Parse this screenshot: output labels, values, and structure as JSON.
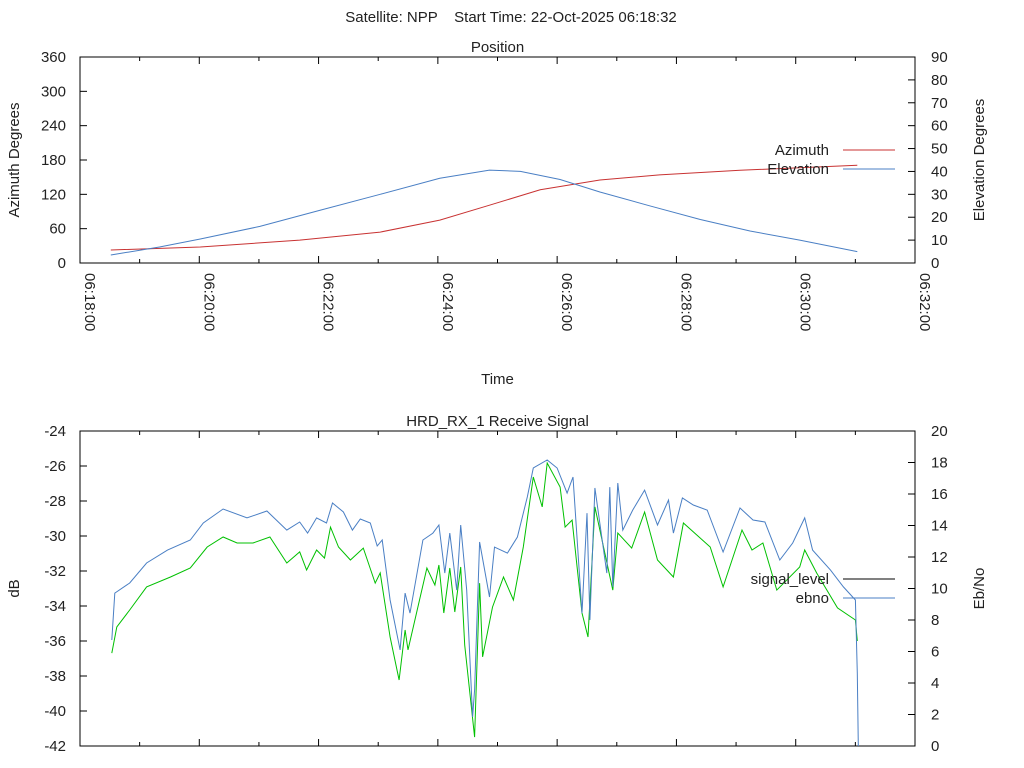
{
  "header": {
    "title": "Satellite: NPP    Start Time: 22-Oct-2025 06:18:32"
  },
  "colors": {
    "azimuth": "#c83232",
    "elevation": "#4a7fc4",
    "signal_level": "#00c000",
    "signal_level_legend": "#000000",
    "ebno": "#4a7fc4"
  },
  "chart_data": [
    {
      "type": "line",
      "title": "Position",
      "xlabel": "Time",
      "ylabel": "Azimuth Degrees",
      "y2label": "Elevation Degrees",
      "x_unit": "seconds since 06:18:00",
      "xlim": [
        0,
        840
      ],
      "ylim": [
        0,
        360
      ],
      "y2lim": [
        0,
        90
      ],
      "xticks": [
        "06:18:00",
        "06:20:00",
        "06:22:00",
        "06:24:00",
        "06:26:00",
        "06:28:00",
        "06:30:00",
        "06:32:00"
      ],
      "yticks": [
        "0",
        "60",
        "120",
        "180",
        "240",
        "300",
        "360"
      ],
      "y2ticks": [
        "0",
        "10",
        "20",
        "30",
        "40",
        "50",
        "60",
        "70",
        "80",
        "90"
      ],
      "legend_position": "right",
      "series": [
        {
          "name": "Azimuth",
          "axis": "y",
          "x": [
            31,
            121,
            221,
            302,
            362,
            412,
            463,
            523,
            583,
            664,
            782
          ],
          "y": [
            22.7,
            28,
            40,
            54,
            75,
            101,
            128,
            145,
            154,
            162,
            171
          ]
        },
        {
          "name": "Elevation",
          "axis": "y2",
          "x": [
            31,
            80,
            121,
            181,
            241,
            302,
            362,
            412,
            443,
            483,
            523,
            573,
            624,
            674,
            724,
            782
          ],
          "y": [
            3.5,
            7,
            10.5,
            16,
            23,
            30,
            37,
            40.6,
            40,
            36.5,
            31,
            25,
            19,
            14,
            10,
            5
          ]
        }
      ]
    },
    {
      "type": "line",
      "title": "HRD_RX_1 Receive Signal",
      "xlabel": "",
      "ylabel": "dB",
      "y2label": "Eb/No",
      "x_unit": "seconds since 06:18:00",
      "xlim": [
        0,
        840
      ],
      "ylim": [
        -42,
        -24
      ],
      "y2lim": [
        0,
        20
      ],
      "yticks": [
        "-42",
        "-40",
        "-38",
        "-36",
        "-34",
        "-32",
        "-30",
        "-28",
        "-26",
        "-24"
      ],
      "y2ticks": [
        "0",
        "2",
        "4",
        "6",
        "8",
        "10",
        "12",
        "14",
        "16",
        "18",
        "20"
      ],
      "legend_position": "right",
      "series": [
        {
          "name": "signal_level",
          "axis": "y",
          "x": [
            32,
            37,
            50,
            67,
            91,
            111,
            128,
            144,
            158,
            174,
            191,
            208,
            221,
            228,
            238,
            246,
            252,
            260,
            272,
            285,
            297,
            302,
            312,
            321,
            327,
            330,
            349,
            357,
            361,
            366,
            372,
            377,
            383,
            387,
            397,
            402,
            405,
            415,
            426,
            436,
            446,
            456,
            465,
            470,
            483,
            488,
            495,
            505,
            511,
            518,
            536,
            541,
            555,
            568,
            581,
            597,
            607,
            634,
            647,
            666,
            676,
            687,
            701,
            724,
            729,
            741,
            762,
            780,
            782
          ],
          "y": [
            -36.69,
            -35.2,
            -34.23,
            -32.91,
            -32.34,
            -31.83,
            -30.63,
            -30.06,
            -30.4,
            -30.4,
            -30.06,
            -31.54,
            -30.91,
            -31.94,
            -30.8,
            -31.26,
            -29.49,
            -30.63,
            -31.37,
            -30.69,
            -32.69,
            -32.11,
            -35.77,
            -38.23,
            -35.37,
            -36.51,
            -31.83,
            -32.8,
            -31.66,
            -34.4,
            -31.83,
            -34.34,
            -31.77,
            -36.23,
            -41.49,
            -32.69,
            -36.91,
            -34.06,
            -32.34,
            -33.66,
            -30.63,
            -26.63,
            -28.34,
            -25.83,
            -27.2,
            -29.49,
            -29.09,
            -34.4,
            -35.77,
            -28.34,
            -33.09,
            -29.83,
            -30.69,
            -28.63,
            -31.37,
            -32.34,
            -29.26,
            -30.63,
            -32.91,
            -29.66,
            -30.8,
            -30.4,
            -33.09,
            -31.77,
            -30.8,
            -32.11,
            -34.11,
            -34.8,
            -36
          ]
        },
        {
          "name": "ebno",
          "axis": "y2",
          "x": [
            32,
            35,
            50,
            67,
            88,
            111,
            124,
            144,
            168,
            188,
            208,
            221,
            229,
            238,
            248,
            254,
            265,
            274,
            282,
            292,
            299,
            304,
            312,
            322,
            327,
            332,
            345,
            355,
            361,
            367,
            372,
            379,
            383,
            389,
            395,
            397,
            402,
            412,
            417,
            430,
            440,
            450,
            456,
            470,
            480,
            490,
            496,
            505,
            510,
            513,
            518,
            530,
            533,
            536,
            541,
            546,
            556,
            568,
            581,
            592,
            597,
            606,
            617,
            631,
            647,
            664,
            677,
            689,
            704,
            717,
            729,
            737,
            755,
            768,
            780,
            782,
            783
          ],
          "y": [
            6.73,
            9.71,
            10.35,
            11.62,
            12.44,
            13.08,
            14.16,
            15.05,
            14.48,
            14.92,
            13.71,
            14.22,
            13.52,
            14.48,
            14.16,
            15.43,
            14.86,
            13.71,
            14.41,
            14.16,
            12.7,
            13.08,
            9.27,
            6.1,
            9.71,
            8.44,
            13.08,
            13.52,
            14.03,
            10.98,
            13.52,
            9.9,
            14.03,
            9.9,
            1.84,
            3.56,
            12.95,
            9.46,
            12.63,
            12.25,
            13.27,
            15.81,
            17.65,
            18.16,
            17.65,
            16.06,
            17.08,
            8.44,
            14.79,
            8.0,
            16.38,
            10.98,
            16.44,
            10.1,
            16.7,
            13.71,
            14.98,
            16.25,
            14.03,
            15.62,
            13.52,
            15.75,
            15.3,
            14.98,
            12.32,
            15.11,
            14.35,
            14.22,
            11.81,
            12.89,
            14.48,
            12.44,
            11.17,
            10.1,
            9.27,
            4.63,
            0
          ]
        }
      ]
    }
  ]
}
